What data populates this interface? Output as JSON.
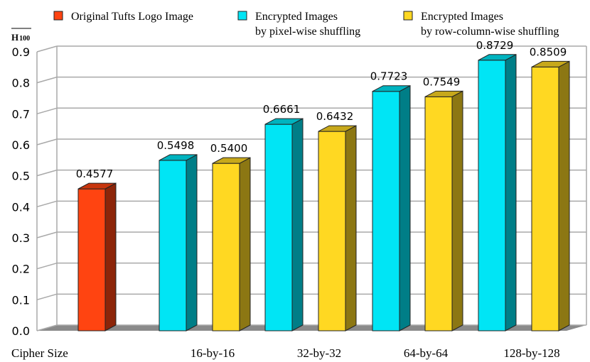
{
  "chart_data": {
    "type": "bar",
    "ylabel": "H100",
    "xlabel": "Cipher Size",
    "ylim": [
      0,
      0.9
    ],
    "yticks": [
      "0.0",
      "0.1",
      "0.2",
      "0.3",
      "0.4",
      "0.5",
      "0.6",
      "0.7",
      "0.8",
      "0.9"
    ],
    "grid": true,
    "legend_position": "top",
    "categories": [
      "",
      "16-by-16",
      "32-by-32",
      "64-by-64",
      "128-by-128"
    ],
    "series": [
      {
        "name": "Original Tufts Logo Image",
        "color": "#FF4411",
        "values": [
          0.4577,
          null,
          null,
          null,
          null
        ],
        "labels": [
          "0.4577",
          "",
          "",
          "",
          ""
        ]
      },
      {
        "name": "Encrypted Images\nby pixel-wise shuffling",
        "color": "#00E5F5",
        "values": [
          null,
          0.5498,
          0.6661,
          0.7723,
          0.8729
        ],
        "labels": [
          "",
          "0.5498",
          "0.6661",
          "0.7723",
          "0.8729"
        ]
      },
      {
        "name": "Encrypted Images\nby row-column-wise shuffling",
        "color": "#FFD822",
        "values": [
          null,
          0.54,
          0.6432,
          0.7549,
          0.8509
        ],
        "labels": [
          "",
          "0.5400",
          "0.6432",
          "0.7549",
          "0.8509"
        ]
      }
    ]
  }
}
